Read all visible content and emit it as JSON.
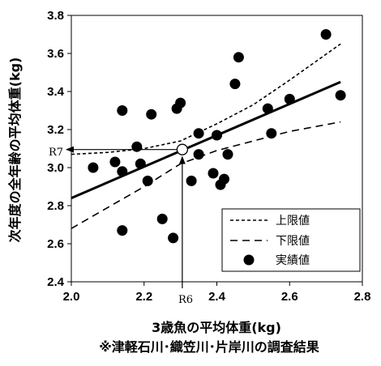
{
  "chart_data": {
    "type": "scatter",
    "xlabel": "3歳魚の平均体重(kg)",
    "ylabel": "次年度の全年齢の平均体重(kg)",
    "note": "※津軽石川･織笠川･片岸川の調査結果",
    "xlim": [
      2.0,
      2.8
    ],
    "ylim": [
      2.4,
      3.8
    ],
    "x_ticks": [
      "2.0",
      "2.2",
      "2.4",
      "2.6",
      "2.8"
    ],
    "y_ticks": [
      "2.4",
      "2.6",
      "2.8",
      "3.0",
      "3.2",
      "3.4",
      "3.6",
      "3.8"
    ],
    "grid": false,
    "legend_position": "bottom-right",
    "legend": [
      "上限値",
      "下限値",
      "実績値"
    ],
    "points": [
      {
        "x": 2.06,
        "y": 3.0
      },
      {
        "x": 2.12,
        "y": 3.03
      },
      {
        "x": 2.14,
        "y": 3.3
      },
      {
        "x": 2.14,
        "y": 2.98
      },
      {
        "x": 2.14,
        "y": 2.67
      },
      {
        "x": 2.18,
        "y": 3.11
      },
      {
        "x": 2.19,
        "y": 3.02
      },
      {
        "x": 2.21,
        "y": 2.93
      },
      {
        "x": 2.22,
        "y": 3.28
      },
      {
        "x": 2.25,
        "y": 2.73
      },
      {
        "x": 2.28,
        "y": 2.63
      },
      {
        "x": 2.29,
        "y": 3.31
      },
      {
        "x": 2.3,
        "y": 3.34
      },
      {
        "x": 2.33,
        "y": 2.93
      },
      {
        "x": 2.35,
        "y": 3.18
      },
      {
        "x": 2.35,
        "y": 3.07
      },
      {
        "x": 2.39,
        "y": 2.97
      },
      {
        "x": 2.4,
        "y": 3.17
      },
      {
        "x": 2.41,
        "y": 2.91
      },
      {
        "x": 2.42,
        "y": 2.94
      },
      {
        "x": 2.43,
        "y": 3.07
      },
      {
        "x": 2.45,
        "y": 3.44
      },
      {
        "x": 2.46,
        "y": 3.58
      },
      {
        "x": 2.54,
        "y": 3.31
      },
      {
        "x": 2.55,
        "y": 3.18
      },
      {
        "x": 2.6,
        "y": 3.36
      },
      {
        "x": 2.7,
        "y": 3.7
      },
      {
        "x": 2.74,
        "y": 3.38
      }
    ],
    "regression": {
      "x": [
        2.0,
        2.74
      ],
      "y": [
        2.84,
        3.45
      ]
    },
    "upper": {
      "x": [
        2.0,
        2.1,
        2.2,
        2.3,
        2.4,
        2.5,
        2.6,
        2.74
      ],
      "y": [
        3.07,
        3.08,
        3.1,
        3.14,
        3.23,
        3.33,
        3.46,
        3.65
      ]
    },
    "lower": {
      "x": [
        2.0,
        2.1,
        2.2,
        2.3,
        2.4,
        2.5,
        2.6,
        2.74
      ],
      "y": [
        2.68,
        2.79,
        2.9,
        3.02,
        3.09,
        3.14,
        3.19,
        3.24
      ]
    },
    "highlight_point": {
      "x": 2.305,
      "y": 3.095
    },
    "annotations": {
      "x_marker": "R6",
      "y_marker": "R7"
    }
  }
}
